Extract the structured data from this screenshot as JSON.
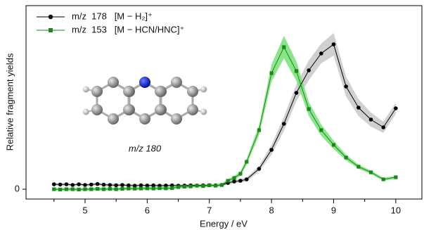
{
  "chart_data": {
    "type": "line",
    "x_label": "Energy / eV",
    "y_label": "Relative fragment yields",
    "annotation": "m/z  180",
    "x": [
      4.5,
      4.6,
      4.7,
      4.8,
      4.9,
      5.0,
      5.1,
      5.2,
      5.3,
      5.4,
      5.5,
      5.6,
      5.7,
      5.8,
      5.9,
      6.0,
      6.1,
      6.2,
      6.3,
      6.4,
      6.5,
      6.6,
      6.7,
      6.8,
      6.9,
      7.0,
      7.1,
      7.2,
      7.3,
      7.4,
      7.5,
      7.6,
      7.8,
      8.0,
      8.2,
      8.4,
      8.6,
      8.8,
      9.0,
      9.2,
      9.4,
      9.6,
      9.8,
      10.0
    ],
    "series": [
      {
        "name": "m/z  178   [M − H₂]⁺",
        "color": "#000000",
        "band_color": "#c8c8c8",
        "marker": "circle",
        "values": [
          0.035,
          0.033,
          0.035,
          0.03,
          0.035,
          0.03,
          0.033,
          0.037,
          0.032,
          0.03,
          0.028,
          0.03,
          0.027,
          0.025,
          0.028,
          0.026,
          0.027,
          0.025,
          0.026,
          0.027,
          0.025,
          0.026,
          0.027,
          0.026,
          0.027,
          0.028,
          0.027,
          0.03,
          0.045,
          0.055,
          0.06,
          0.07,
          0.145,
          0.28,
          0.465,
          0.685,
          0.845,
          0.965,
          1.03,
          0.73,
          0.58,
          0.495,
          0.44,
          0.575
        ],
        "errors": [
          0.01,
          0.01,
          0.01,
          0.01,
          0.01,
          0.01,
          0.01,
          0.01,
          0.01,
          0.01,
          0.01,
          0.01,
          0.01,
          0.01,
          0.01,
          0.01,
          0.01,
          0.01,
          0.01,
          0.01,
          0.01,
          0.01,
          0.01,
          0.01,
          0.01,
          0.01,
          0.01,
          0.01,
          0.012,
          0.013,
          0.014,
          0.015,
          0.02,
          0.035,
          0.05,
          0.06,
          0.07,
          0.07,
          0.08,
          0.07,
          0.06,
          0.05,
          0.04,
          0.04
        ]
      },
      {
        "name": "m/z  153   [M − HCN/HNC]⁺",
        "color": "#1a8a1a",
        "band_color": "#77e077",
        "marker": "square",
        "values": [
          0.0,
          -0.002,
          0.0,
          0.0,
          -0.002,
          0.0,
          0.0,
          0.002,
          0.0,
          0.002,
          0.0,
          0.003,
          0.005,
          0.004,
          0.005,
          0.006,
          0.005,
          0.007,
          0.006,
          0.008,
          0.015,
          0.018,
          0.02,
          0.025,
          0.022,
          0.028,
          0.025,
          0.03,
          0.06,
          0.08,
          0.11,
          0.195,
          0.42,
          0.825,
          1.01,
          0.84,
          0.57,
          0.42,
          0.315,
          0.225,
          0.16,
          0.12,
          0.07,
          0.085
        ],
        "errors": [
          0.01,
          0.01,
          0.01,
          0.01,
          0.01,
          0.01,
          0.01,
          0.01,
          0.01,
          0.01,
          0.01,
          0.01,
          0.01,
          0.01,
          0.01,
          0.01,
          0.01,
          0.01,
          0.01,
          0.01,
          0.01,
          0.01,
          0.01,
          0.01,
          0.01,
          0.01,
          0.01,
          0.01,
          0.012,
          0.014,
          0.016,
          0.02,
          0.035,
          0.06,
          0.08,
          0.07,
          0.05,
          0.04,
          0.03,
          0.02,
          0.015,
          0.012,
          0.01,
          0.01
        ]
      }
    ],
    "xlim": [
      4.05,
      10.42
    ],
    "ylim": [
      -0.07,
      1.305
    ],
    "xticks": [
      5,
      6,
      7,
      8,
      9,
      10
    ],
    "xminorticks": [
      4.5,
      5.5,
      6.5,
      7.5,
      8.5,
      9.5,
      10.5
    ],
    "yticks": [
      0
    ],
    "legend": "upper left"
  }
}
